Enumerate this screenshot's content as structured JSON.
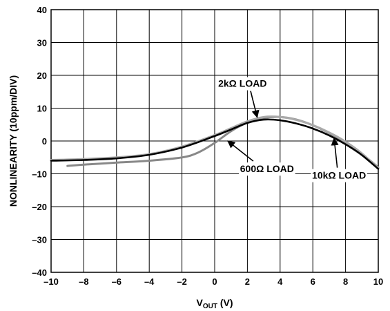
{
  "chart_data": {
    "type": "line",
    "xlabel": {
      "main": "V",
      "sub": "OUT",
      "suffix": " (V)"
    },
    "ylabel": "NONLINEARITY (10ppm/DIV)",
    "xlim": [
      -10,
      10
    ],
    "ylim": [
      -40,
      40
    ],
    "x_ticks": [
      "–10",
      "–8",
      "–6",
      "–4",
      "–2",
      "0",
      "2",
      "4",
      "6",
      "8",
      "10"
    ],
    "y_ticks": [
      "–40",
      "–30",
      "–20",
      "–10",
      "0",
      "10",
      "20",
      "30",
      "40"
    ],
    "grid": true,
    "series": [
      {
        "name": "2kΩ LOAD",
        "color": "#000000",
        "x": [
          -10,
          -8,
          -6,
          -4,
          -2,
          0,
          1,
          2,
          3,
          4,
          5,
          6,
          7,
          8,
          9,
          10
        ],
        "y": [
          -6,
          -5.8,
          -5.3,
          -4.2,
          -2,
          1.5,
          3.5,
          5.5,
          6.5,
          6.3,
          5.3,
          3.8,
          1.7,
          -1,
          -4.3,
          -8.5
        ]
      },
      {
        "name": "10kΩ LOAD",
        "color": "#aaaaaa",
        "x": [
          -10,
          -8,
          -6,
          -4,
          -2,
          0,
          1,
          2,
          3,
          4,
          5,
          6,
          7,
          8,
          9,
          10
        ],
        "y": [
          -5.8,
          -5.5,
          -5,
          -4,
          -1.7,
          1.8,
          3.9,
          6,
          7.3,
          7.3,
          6.4,
          4.8,
          2.6,
          -0.2,
          -3.8,
          -8.3
        ]
      },
      {
        "name": "600Ω LOAD",
        "color": "#888888",
        "x": [
          -9,
          -8,
          -6,
          -4,
          -2,
          -1,
          0,
          1,
          2,
          3,
          4,
          5,
          6,
          7,
          8,
          9,
          10
        ],
        "y": [
          -7.6,
          -7.2,
          -6.6,
          -6,
          -5,
          -3.5,
          -0.6,
          3,
          5.6,
          7,
          7.3,
          6.5,
          4.8,
          2.4,
          -0.5,
          -4,
          -8
        ]
      }
    ],
    "annotations": [
      {
        "text": "2kΩ LOAD",
        "x": 1.7,
        "y": 16.5,
        "arrow_to": [
          2.6,
          7.2
        ]
      },
      {
        "text": "600Ω LOAD",
        "x": 3.2,
        "y": -9.5,
        "arrow_to": [
          0.8,
          0
        ]
      },
      {
        "text": "10kΩ LOAD",
        "x": 7.6,
        "y": -11.5,
        "arrow_to": [
          7.3,
          0.8
        ]
      }
    ]
  }
}
